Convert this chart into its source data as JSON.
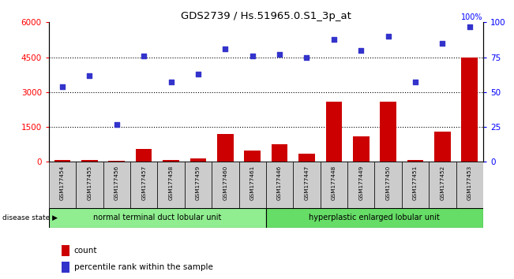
{
  "title": "GDS2739 / Hs.51965.0.S1_3p_at",
  "samples": [
    "GSM177454",
    "GSM177455",
    "GSM177456",
    "GSM177457",
    "GSM177458",
    "GSM177459",
    "GSM177460",
    "GSM177461",
    "GSM177446",
    "GSM177447",
    "GSM177448",
    "GSM177449",
    "GSM177450",
    "GSM177451",
    "GSM177452",
    "GSM177453"
  ],
  "counts": [
    80,
    80,
    50,
    550,
    90,
    130,
    1200,
    500,
    750,
    350,
    2600,
    1100,
    2600,
    80,
    1300,
    4500
  ],
  "percentiles": [
    54,
    62,
    27,
    76,
    57,
    63,
    81,
    76,
    77,
    75,
    88,
    80,
    90,
    57,
    85,
    97
  ],
  "group1_label": "normal terminal duct lobular unit",
  "group2_label": "hyperplastic enlarged lobular unit",
  "group1_count": 8,
  "group2_count": 8,
  "disease_state_label": "disease state",
  "left_ylim": [
    0,
    6000
  ],
  "right_ylim": [
    0,
    100
  ],
  "left_yticks": [
    0,
    1500,
    3000,
    4500,
    6000
  ],
  "right_yticks": [
    0,
    25,
    50,
    75,
    100
  ],
  "bar_color": "#cc0000",
  "scatter_color": "#3333cc",
  "group1_bg": "#90ee90",
  "group2_bg": "#66dd66",
  "sample_bg": "#cccccc",
  "legend_count_label": "count",
  "legend_pct_label": "percentile rank within the sample",
  "right_top_label": "100%"
}
